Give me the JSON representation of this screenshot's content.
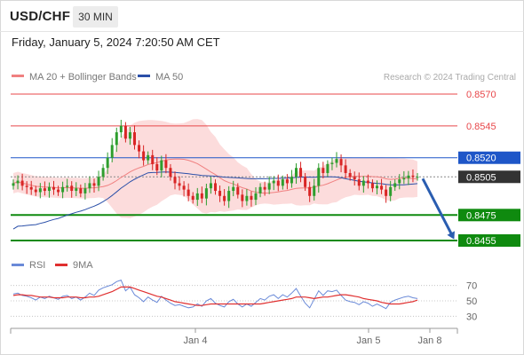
{
  "header": {
    "symbol": "USD/CHF",
    "timeframe": "30 MIN",
    "datetime": "Friday, January 5, 2024 7:20:50 AM CET"
  },
  "legend": {
    "ma20": "MA 20 + Bollinger Bands",
    "ma50": "MA 50",
    "copyright": "Research © 2024 Trading Central"
  },
  "rsi_legend": {
    "rsi": "RSI",
    "ma9": "9MA"
  },
  "colors": {
    "resistance": "#e8474a",
    "pivot": "#1e56c8",
    "support": "#0f8a0f",
    "bollinger_fill": "#fbd0d0",
    "ma20": "#f08080",
    "ma50": "#2a4fa8",
    "candle_up": "#2e9e2e",
    "candle_down": "#d92525",
    "arrow": "#2a5db0",
    "current": "#333333",
    "rsi": "#6a8ad8",
    "rsi_ma": "#e03030"
  },
  "chart_data": {
    "type": "candlestick",
    "symbol": "USD/CHF",
    "timeframe": "30 MIN",
    "ylim": [
      0.8445,
      0.858
    ],
    "current_price": 0.8505,
    "levels": [
      {
        "value": 0.857,
        "label": "0.8570",
        "kind": "resistance"
      },
      {
        "value": 0.8545,
        "label": "0.8545",
        "kind": "resistance"
      },
      {
        "value": 0.852,
        "label": "0.8520",
        "kind": "pivot"
      },
      {
        "value": 0.8505,
        "label": "0.8505",
        "kind": "current"
      },
      {
        "value": 0.8475,
        "label": "0.8475",
        "kind": "support"
      },
      {
        "value": 0.8455,
        "label": "0.8455",
        "kind": "support"
      }
    ],
    "forecast_arrow": {
      "from": 0.8505,
      "to": 0.8455
    },
    "x_ticks": [
      "Jan 4",
      "Jan 5",
      "Jan 8"
    ],
    "close": [
      0.85,
      0.8502,
      0.8498,
      0.8497,
      0.8495,
      0.8493,
      0.8496,
      0.8494,
      0.8497,
      0.8495,
      0.8493,
      0.8497,
      0.8498,
      0.8494,
      0.8496,
      0.8492,
      0.8496,
      0.85,
      0.8498,
      0.8505,
      0.8512,
      0.852,
      0.853,
      0.854,
      0.8545,
      0.8535,
      0.854,
      0.853,
      0.8525,
      0.8518,
      0.8522,
      0.8515,
      0.851,
      0.8518,
      0.8512,
      0.8505,
      0.85,
      0.8498,
      0.8495,
      0.849,
      0.8487,
      0.8492,
      0.8488,
      0.8496,
      0.85,
      0.8494,
      0.849,
      0.8486,
      0.8494,
      0.8497,
      0.8491,
      0.8486,
      0.849,
      0.8487,
      0.8492,
      0.8497,
      0.8495,
      0.85,
      0.8502,
      0.8498,
      0.8503,
      0.85,
      0.8505,
      0.8512,
      0.8505,
      0.8497,
      0.849,
      0.8498,
      0.8512,
      0.8508,
      0.8515,
      0.8516,
      0.8519,
      0.8514,
      0.8508,
      0.8505,
      0.8503,
      0.8498,
      0.8502,
      0.85,
      0.8496,
      0.8498,
      0.8495,
      0.849,
      0.8497,
      0.85,
      0.8503,
      0.8504,
      0.8506,
      0.8505,
      0.8505
    ],
    "rsi": {
      "ylim": [
        20,
        80
      ],
      "ticks": [
        70,
        50,
        30
      ],
      "values": [
        59,
        60,
        57,
        56,
        54,
        51,
        55,
        53,
        56,
        54,
        52,
        56,
        57,
        53,
        55,
        51,
        55,
        60,
        57,
        64,
        67,
        69,
        71,
        75,
        77,
        63,
        68,
        58,
        54,
        49,
        55,
        51,
        48,
        56,
        51,
        47,
        44,
        45,
        43,
        41,
        42,
        46,
        43,
        50,
        53,
        47,
        44,
        42,
        49,
        52,
        46,
        42,
        46,
        43,
        48,
        53,
        51,
        56,
        58,
        53,
        58,
        55,
        60,
        66,
        56,
        47,
        41,
        52,
        63,
        57,
        63,
        62,
        64,
        57,
        51,
        49,
        48,
        45,
        49,
        47,
        43,
        46,
        43,
        40,
        48,
        51,
        53,
        55,
        56,
        54,
        53
      ],
      "ma9": [
        57,
        58,
        58,
        57,
        57,
        56,
        55,
        55,
        55,
        54,
        54,
        54,
        55,
        55,
        55,
        54,
        54,
        55,
        55,
        56,
        58,
        60,
        62,
        65,
        68,
        68,
        68,
        66,
        64,
        62,
        60,
        58,
        56,
        55,
        53,
        51,
        49,
        48,
        47,
        46,
        45,
        44,
        44,
        45,
        46,
        46,
        46,
        46,
        46,
        46,
        46,
        46,
        46,
        46,
        46,
        46,
        47,
        48,
        49,
        50,
        51,
        52,
        53,
        55,
        55,
        55,
        54,
        53,
        54,
        55,
        55,
        56,
        57,
        58,
        58,
        57,
        56,
        55,
        53,
        52,
        51,
        50,
        48,
        47,
        46,
        46,
        46,
        47,
        48,
        49,
        51
      ]
    }
  }
}
